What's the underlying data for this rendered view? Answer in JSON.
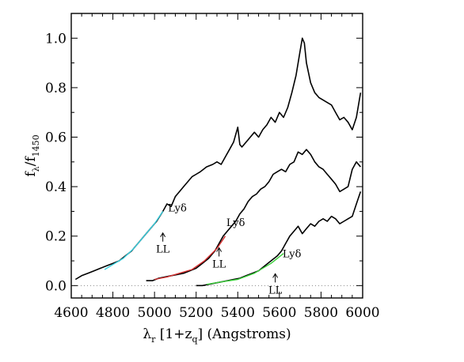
{
  "chart_data": {
    "type": "line",
    "title": "",
    "xlabel": {
      "main": "λ",
      "sub": "r",
      "rest": " [1+z",
      "sub2": "q",
      "rest2": "] (Angstroms)"
    },
    "ylabel": {
      "main": "f",
      "sub": "λ",
      "mid": "/f",
      "sub2": "1450"
    },
    "xlim": [
      4600,
      6000
    ],
    "ylim": [
      -0.05,
      1.1
    ],
    "xticks": [
      "4600",
      "4800",
      "5000",
      "5200",
      "5400",
      "5600",
      "5800",
      "6000"
    ],
    "yticks": [
      "0.0",
      "0.2",
      "0.4",
      "0.6",
      "0.8",
      "1.0"
    ],
    "grid": false,
    "zero_line": {
      "y": 0.0,
      "style": "dotted"
    },
    "series": [
      {
        "color": "#000000",
        "points": [
          [
            4620,
            0.025
          ],
          [
            4650,
            0.04
          ],
          [
            4680,
            0.05
          ],
          [
            4710,
            0.06
          ],
          [
            4740,
            0.07
          ],
          [
            4770,
            0.08
          ],
          [
            4800,
            0.09
          ],
          [
            4830,
            0.1
          ],
          [
            4860,
            0.12
          ],
          [
            4890,
            0.14
          ],
          [
            4920,
            0.17
          ],
          [
            4950,
            0.2
          ],
          [
            4980,
            0.23
          ],
          [
            5010,
            0.26
          ],
          [
            5040,
            0.3
          ],
          [
            5060,
            0.33
          ],
          [
            5080,
            0.32
          ],
          [
            5100,
            0.36
          ],
          [
            5120,
            0.38
          ],
          [
            5140,
            0.4
          ],
          [
            5160,
            0.42
          ],
          [
            5180,
            0.44
          ],
          [
            5200,
            0.45
          ],
          [
            5220,
            0.46
          ],
          [
            5250,
            0.48
          ],
          [
            5280,
            0.49
          ],
          [
            5300,
            0.5
          ],
          [
            5320,
            0.49
          ],
          [
            5340,
            0.52
          ],
          [
            5360,
            0.55
          ],
          [
            5380,
            0.58
          ],
          [
            5400,
            0.64
          ],
          [
            5410,
            0.57
          ],
          [
            5420,
            0.56
          ],
          [
            5440,
            0.58
          ],
          [
            5460,
            0.6
          ],
          [
            5480,
            0.62
          ],
          [
            5500,
            0.6
          ],
          [
            5520,
            0.63
          ],
          [
            5540,
            0.65
          ],
          [
            5560,
            0.68
          ],
          [
            5580,
            0.66
          ],
          [
            5600,
            0.7
          ],
          [
            5620,
            0.68
          ],
          [
            5640,
            0.72
          ],
          [
            5660,
            0.78
          ],
          [
            5680,
            0.85
          ],
          [
            5700,
            0.95
          ],
          [
            5710,
            1.0
          ],
          [
            5720,
            0.98
          ],
          [
            5730,
            0.9
          ],
          [
            5750,
            0.82
          ],
          [
            5770,
            0.78
          ],
          [
            5790,
            0.76
          ],
          [
            5810,
            0.75
          ],
          [
            5830,
            0.74
          ],
          [
            5850,
            0.73
          ],
          [
            5870,
            0.7
          ],
          [
            5890,
            0.67
          ],
          [
            5910,
            0.68
          ],
          [
            5930,
            0.66
          ],
          [
            5950,
            0.63
          ],
          [
            5970,
            0.68
          ],
          [
            5990,
            0.78
          ]
        ]
      },
      {
        "color": "#000000",
        "points": [
          [
            4960,
            0.02
          ],
          [
            4990,
            0.02
          ],
          [
            5020,
            0.03
          ],
          [
            5050,
            0.035
          ],
          [
            5080,
            0.04
          ],
          [
            5110,
            0.045
          ],
          [
            5140,
            0.05
          ],
          [
            5170,
            0.06
          ],
          [
            5200,
            0.07
          ],
          [
            5230,
            0.09
          ],
          [
            5260,
            0.11
          ],
          [
            5290,
            0.14
          ],
          [
            5310,
            0.17
          ],
          [
            5330,
            0.2
          ],
          [
            5350,
            0.22
          ],
          [
            5370,
            0.24
          ],
          [
            5390,
            0.26
          ],
          [
            5410,
            0.29
          ],
          [
            5430,
            0.31
          ],
          [
            5450,
            0.34
          ],
          [
            5470,
            0.36
          ],
          [
            5490,
            0.37
          ],
          [
            5510,
            0.39
          ],
          [
            5530,
            0.4
          ],
          [
            5550,
            0.42
          ],
          [
            5570,
            0.45
          ],
          [
            5590,
            0.46
          ],
          [
            5610,
            0.47
          ],
          [
            5630,
            0.46
          ],
          [
            5650,
            0.49
          ],
          [
            5670,
            0.5
          ],
          [
            5690,
            0.54
          ],
          [
            5710,
            0.53
          ],
          [
            5730,
            0.55
          ],
          [
            5750,
            0.53
          ],
          [
            5770,
            0.5
          ],
          [
            5790,
            0.48
          ],
          [
            5810,
            0.47
          ],
          [
            5830,
            0.45
          ],
          [
            5850,
            0.43
          ],
          [
            5870,
            0.41
          ],
          [
            5890,
            0.38
          ],
          [
            5910,
            0.39
          ],
          [
            5930,
            0.4
          ],
          [
            5950,
            0.47
          ],
          [
            5970,
            0.5
          ],
          [
            5990,
            0.48
          ]
        ]
      },
      {
        "color": "#000000",
        "points": [
          [
            5200,
            0.0
          ],
          [
            5230,
            0.0
          ],
          [
            5260,
            0.005
          ],
          [
            5290,
            0.01
          ],
          [
            5320,
            0.015
          ],
          [
            5350,
            0.02
          ],
          [
            5380,
            0.025
          ],
          [
            5410,
            0.03
          ],
          [
            5440,
            0.04
          ],
          [
            5470,
            0.05
          ],
          [
            5500,
            0.06
          ],
          [
            5530,
            0.08
          ],
          [
            5560,
            0.1
          ],
          [
            5590,
            0.12
          ],
          [
            5610,
            0.14
          ],
          [
            5630,
            0.17
          ],
          [
            5650,
            0.2
          ],
          [
            5670,
            0.22
          ],
          [
            5690,
            0.24
          ],
          [
            5710,
            0.21
          ],
          [
            5730,
            0.23
          ],
          [
            5750,
            0.25
          ],
          [
            5770,
            0.24
          ],
          [
            5790,
            0.26
          ],
          [
            5810,
            0.27
          ],
          [
            5830,
            0.26
          ],
          [
            5850,
            0.28
          ],
          [
            5870,
            0.27
          ],
          [
            5890,
            0.25
          ],
          [
            5910,
            0.26
          ],
          [
            5930,
            0.27
          ],
          [
            5950,
            0.28
          ],
          [
            5970,
            0.33
          ],
          [
            5990,
            0.38
          ]
        ]
      },
      {
        "color": "#39d0e0",
        "points": [
          [
            4760,
            0.065
          ],
          [
            4800,
            0.085
          ],
          [
            4850,
            0.11
          ],
          [
            4900,
            0.15
          ],
          [
            4950,
            0.2
          ],
          [
            5000,
            0.25
          ],
          [
            5040,
            0.3
          ]
        ]
      },
      {
        "color": "#d43030",
        "points": [
          [
            5000,
            0.025
          ],
          [
            5060,
            0.035
          ],
          [
            5120,
            0.05
          ],
          [
            5180,
            0.065
          ],
          [
            5240,
            0.1
          ],
          [
            5300,
            0.15
          ],
          [
            5340,
            0.2
          ]
        ]
      },
      {
        "color": "#3ad03a",
        "points": [
          [
            5250,
            0.005
          ],
          [
            5320,
            0.015
          ],
          [
            5400,
            0.025
          ],
          [
            5480,
            0.05
          ],
          [
            5560,
            0.09
          ],
          [
            5620,
            0.13
          ]
        ]
      }
    ],
    "annotations": [
      {
        "text": "Lyδ",
        "x": 5110,
        "y": 0.3
      },
      {
        "text": "Lyδ",
        "x": 5390,
        "y": 0.24
      },
      {
        "text": "Lyδ",
        "x": 5660,
        "y": 0.115
      },
      {
        "text": "LL",
        "x": 5040,
        "y": 0.165,
        "arrow": true
      },
      {
        "text": "LL",
        "x": 5310,
        "y": 0.105,
        "arrow": true
      },
      {
        "text": "LL",
        "x": 5580,
        "y": 0.0,
        "arrow": true
      }
    ]
  }
}
